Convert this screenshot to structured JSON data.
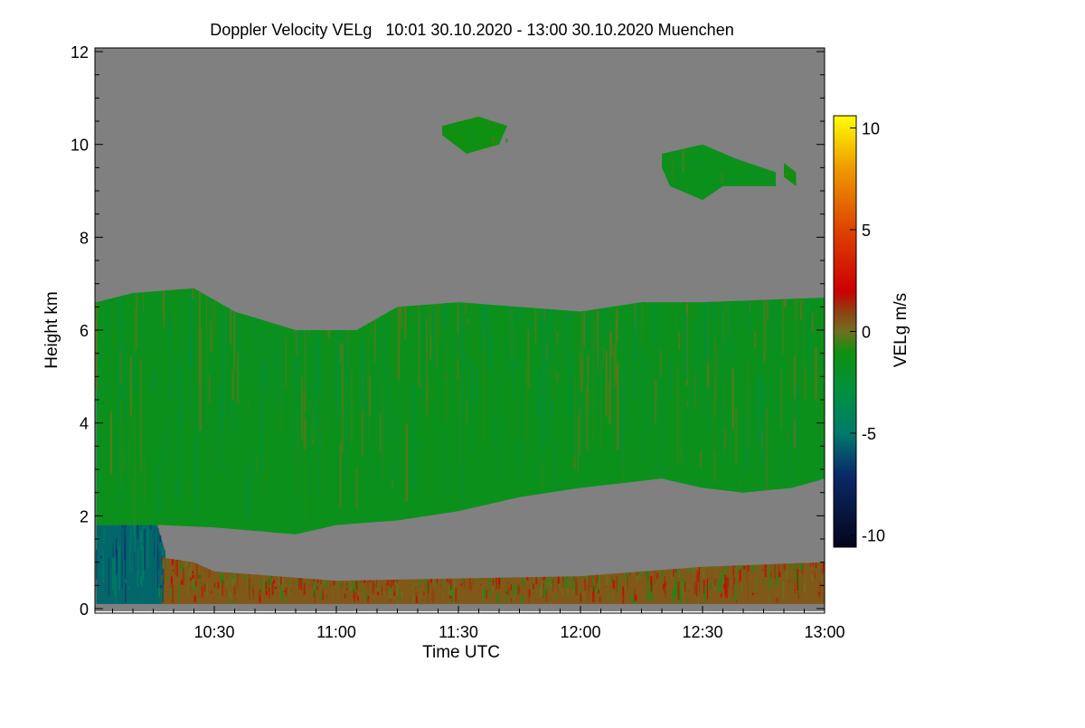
{
  "chart_data": {
    "type": "heatmap",
    "title": "Doppler Velocity VELg   10:01 30.10.2020 - 13:00 30.10.2020 Muenchen",
    "xlabel": "Time UTC",
    "ylabel": "Height km",
    "x_range_minutes_after_10": [
      1,
      180
    ],
    "xlim": [
      "10:01",
      "13:00"
    ],
    "ylim": [
      0,
      12
    ],
    "x_ticks": [
      {
        "min": 30,
        "label": "10:30"
      },
      {
        "min": 60,
        "label": "11:00"
      },
      {
        "min": 90,
        "label": "11:30"
      },
      {
        "min": 120,
        "label": "12:00"
      },
      {
        "min": 150,
        "label": "12:30"
      },
      {
        "min": 180,
        "label": "13:00"
      }
    ],
    "y_ticks": [
      {
        "v": 0,
        "label": "0"
      },
      {
        "v": 2,
        "label": "2"
      },
      {
        "v": 4,
        "label": "4"
      },
      {
        "v": 6,
        "label": "6"
      },
      {
        "v": 8,
        "label": "8"
      },
      {
        "v": 10,
        "label": "10"
      },
      {
        "v": 12,
        "label": "12"
      }
    ],
    "colorbar": {
      "label": "VELg m/s",
      "range": [
        -10.6,
        10.6
      ],
      "ticks": [
        {
          "v": 10,
          "label": "10"
        },
        {
          "v": 5,
          "label": "5"
        },
        {
          "v": 0,
          "label": "0"
        },
        {
          "v": -5,
          "label": "-5"
        },
        {
          "v": -10,
          "label": "-10"
        }
      ],
      "stops": [
        [
          -10.6,
          "#05051a"
        ],
        [
          -7,
          "#0a2a6a"
        ],
        [
          -5,
          "#007a6a"
        ],
        [
          -3,
          "#009040"
        ],
        [
          -1,
          "#109010"
        ],
        [
          0,
          "#707020"
        ],
        [
          1,
          "#904010"
        ],
        [
          2,
          "#cc0000"
        ],
        [
          5,
          "#dd4400"
        ],
        [
          8,
          "#ee9900"
        ],
        [
          10.6,
          "#ffff00"
        ]
      ]
    },
    "no_data_color": "#808080",
    "regions": [
      {
        "name": "main-cloud-layer",
        "velocity": -1.5,
        "top": [
          [
            1,
            6.6
          ],
          [
            10,
            6.8
          ],
          [
            25,
            6.9
          ],
          [
            35,
            6.4
          ],
          [
            50,
            6.0
          ],
          [
            65,
            6.0
          ],
          [
            75,
            6.5
          ],
          [
            90,
            6.6
          ],
          [
            105,
            6.5
          ],
          [
            120,
            6.4
          ],
          [
            135,
            6.6
          ],
          [
            150,
            6.6
          ],
          [
            180,
            6.7
          ]
        ],
        "bottom": [
          [
            180,
            2.8
          ],
          [
            172,
            2.6
          ],
          [
            160,
            2.5
          ],
          [
            150,
            2.6
          ],
          [
            140,
            2.8
          ],
          [
            130,
            2.7
          ],
          [
            120,
            2.6
          ],
          [
            105,
            2.4
          ],
          [
            90,
            2.1
          ],
          [
            75,
            1.9
          ],
          [
            60,
            1.8
          ],
          [
            50,
            1.6
          ],
          [
            30,
            1.75
          ],
          [
            17,
            1.8
          ],
          [
            1,
            1.8
          ]
        ]
      },
      {
        "name": "low-downdraft-region",
        "velocity": -5.5,
        "top": [
          [
            1,
            1.8
          ],
          [
            16,
            1.8
          ],
          [
            18,
            1.2
          ],
          [
            18,
            0.1
          ]
        ],
        "bottom": [
          [
            1,
            0.1
          ]
        ]
      },
      {
        "name": "boundary-layer-echo",
        "velocity": 0.5,
        "top": [
          [
            17,
            1.1
          ],
          [
            25,
            1.0
          ],
          [
            30,
            0.8
          ],
          [
            60,
            0.6
          ],
          [
            120,
            0.7
          ],
          [
            150,
            0.9
          ],
          [
            180,
            1.0
          ]
        ],
        "bottom": [
          [
            180,
            0.1
          ],
          [
            17,
            0.1
          ]
        ]
      },
      {
        "name": "cirrus-1",
        "velocity": -1,
        "top": [
          [
            86,
            10.4
          ],
          [
            95,
            10.6
          ],
          [
            102,
            10.4
          ]
        ],
        "bottom": [
          [
            100,
            10.0
          ],
          [
            92,
            9.8
          ],
          [
            86,
            10.2
          ]
        ]
      },
      {
        "name": "cirrus-2",
        "velocity": -1.5,
        "top": [
          [
            140,
            9.8
          ],
          [
            150,
            10.0
          ],
          [
            158,
            9.7
          ],
          [
            168,
            9.4
          ]
        ],
        "bottom": [
          [
            168,
            9.1
          ],
          [
            155,
            9.1
          ],
          [
            150,
            8.8
          ],
          [
            142,
            9.1
          ],
          [
            140,
            9.5
          ]
        ]
      },
      {
        "name": "cirrus-3",
        "velocity": -1,
        "top": [
          [
            170,
            9.6
          ],
          [
            173,
            9.4
          ]
        ],
        "bottom": [
          [
            173,
            9.1
          ],
          [
            170,
            9.3
          ]
        ]
      }
    ]
  }
}
